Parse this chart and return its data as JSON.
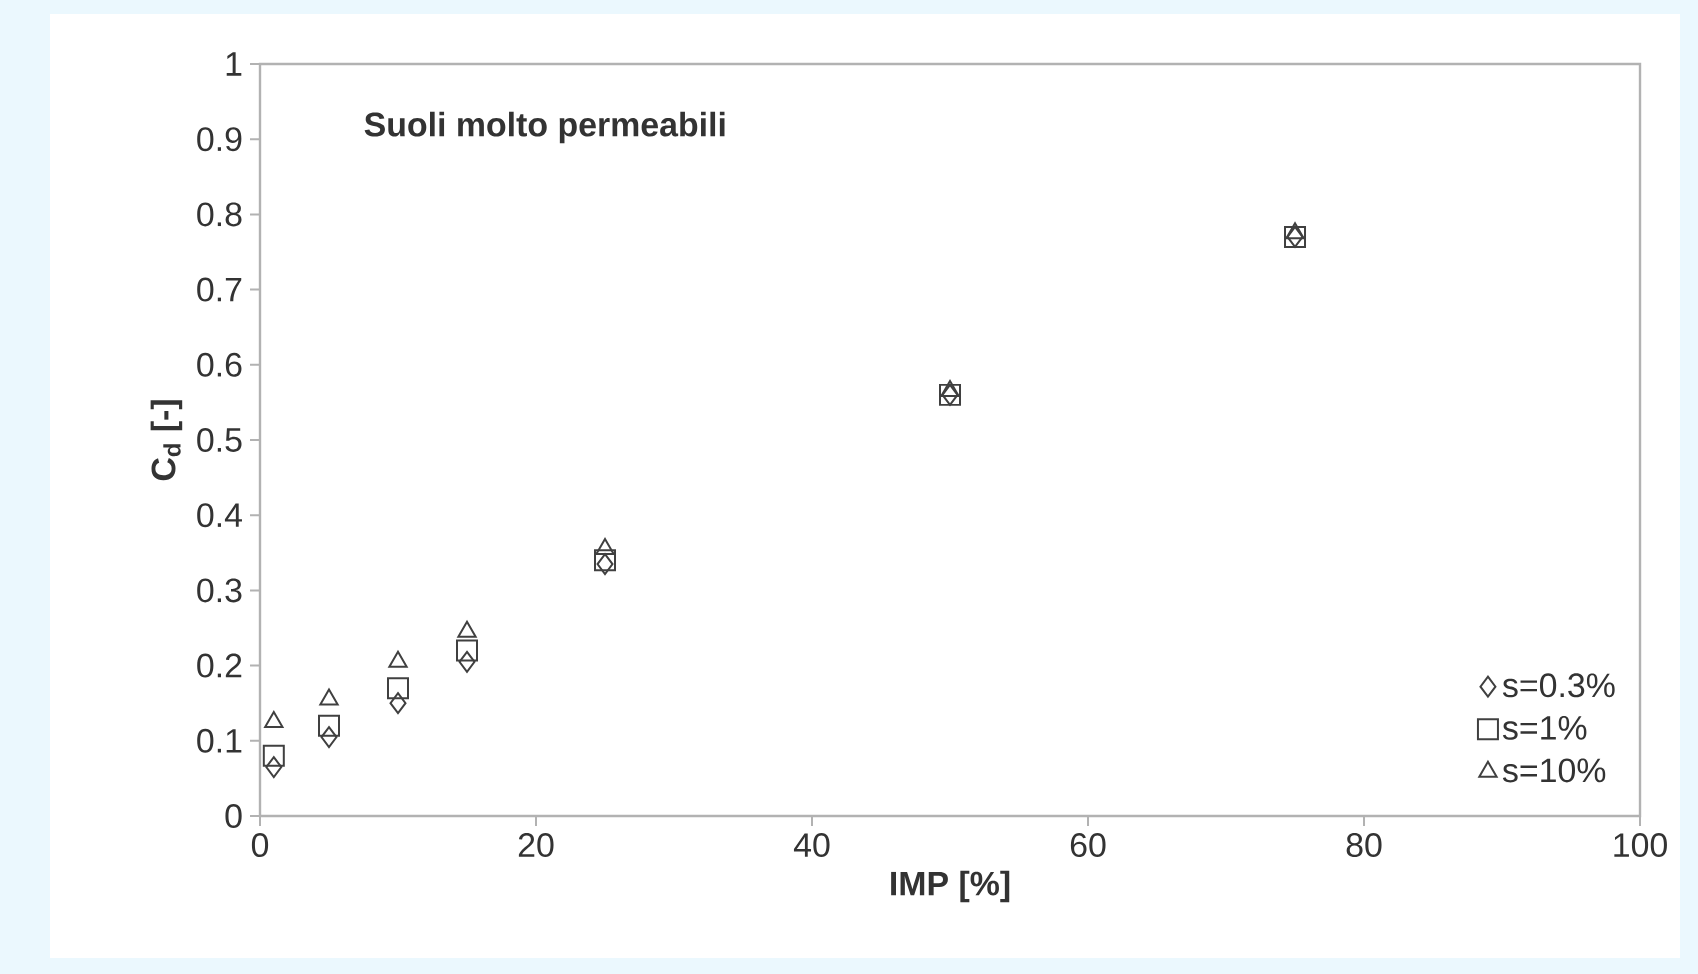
{
  "chart_data": {
    "type": "scatter",
    "title": "Suoli molto permeabili",
    "xlabel": "IMP [%]",
    "ylabel": "C$_{d}$ [-]",
    "x": [
      1,
      5,
      10,
      15,
      25,
      50,
      75
    ],
    "series": [
      {
        "name": "s=0.3%",
        "color": "#404040",
        "marker": "diamond",
        "values": [
          0.065,
          0.105,
          0.15,
          0.205,
          0.335,
          0.56,
          0.77
        ]
      },
      {
        "name": "s=1%",
        "color": "#404040",
        "marker": "square",
        "values": [
          0.08,
          0.12,
          0.17,
          0.22,
          0.34,
          0.56,
          0.77
        ]
      },
      {
        "name": "s=10%",
        "color": "#404040",
        "marker": "triangle",
        "values": [
          0.125,
          0.155,
          0.205,
          0.245,
          0.355,
          0.565,
          0.775
        ]
      }
    ],
    "xlim": [
      0,
      100
    ],
    "xticks": [
      0,
      20,
      40,
      60,
      80,
      100
    ],
    "ylim": [
      0,
      1
    ],
    "yticks": [
      0,
      0.1,
      0.2,
      0.3,
      0.4,
      0.5,
      0.6,
      0.7,
      0.8,
      0.9,
      1
    ],
    "grid": false,
    "legend": "bottom right"
  }
}
